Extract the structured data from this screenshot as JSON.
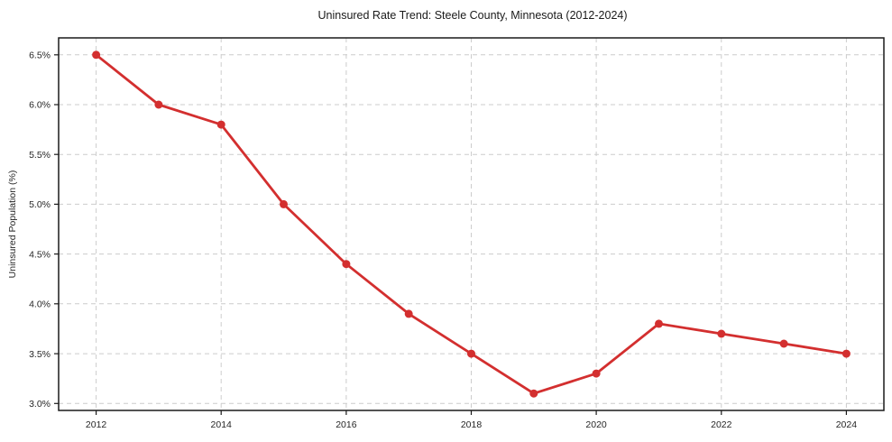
{
  "chart_data": {
    "type": "line",
    "title": "Uninsured Rate Trend: Steele County, Minnesota (2012-2024)",
    "xlabel": "",
    "ylabel": "Uninsured Population (%)",
    "x": [
      2012,
      2013,
      2014,
      2015,
      2016,
      2017,
      2018,
      2019,
      2020,
      2021,
      2022,
      2023,
      2024
    ],
    "series": [
      {
        "name": "Uninsured Rate",
        "values": [
          6.5,
          6.0,
          5.8,
          5.0,
          4.4,
          3.9,
          3.5,
          3.1,
          3.3,
          3.8,
          3.7,
          3.6,
          3.5
        ],
        "color": "#d32f2f"
      }
    ],
    "xlim": [
      2011.4,
      2024.6
    ],
    "ylim": [
      2.93,
      6.67
    ],
    "xticks": {
      "values": [
        2012,
        2014,
        2016,
        2018,
        2020,
        2022,
        2024
      ],
      "labels": [
        "2012",
        "2014",
        "2016",
        "2018",
        "2020",
        "2022",
        "2024"
      ]
    },
    "yticks": {
      "values": [
        3.0,
        3.5,
        4.0,
        4.5,
        5.0,
        5.5,
        6.0,
        6.5
      ],
      "labels": [
        "3.0%",
        "3.5%",
        "4.0%",
        "4.5%",
        "5.0%",
        "5.5%",
        "6.0%",
        "6.5%"
      ]
    },
    "grid": true,
    "legend": "none",
    "colors": {
      "line": "#d32f2f",
      "grid": "#cccccc",
      "axis": "#1a1a1a",
      "tick_label": "#262626",
      "background": "#ffffff"
    }
  }
}
